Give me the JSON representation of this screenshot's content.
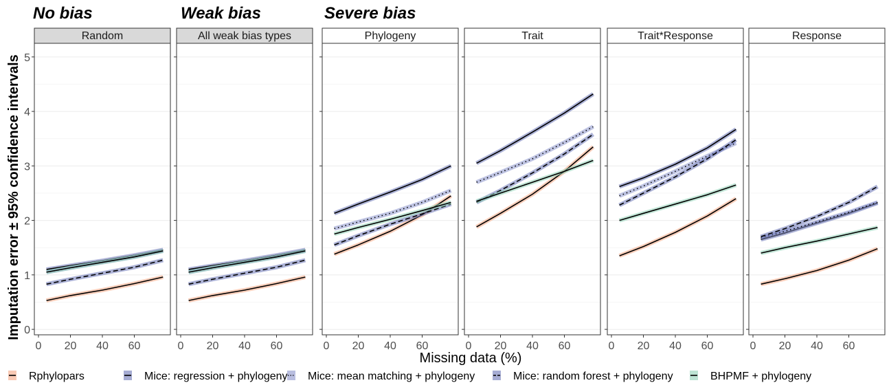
{
  "chart_data": {
    "type": "line",
    "group_titles": [
      "No bias",
      "Weak bias",
      "Severe bias"
    ],
    "xlabel": "Missing data (%)",
    "ylabel": "Imputation error ± 95% confidence intervals",
    "xlim": [
      0,
      80
    ],
    "ylim": [
      -0.1,
      5.25
    ],
    "x_ticks": [
      0,
      20,
      40,
      60
    ],
    "y_ticks": [
      0,
      1,
      2,
      3,
      4,
      5
    ],
    "grid": true,
    "legend_position": "bottom",
    "series_styles": [
      {
        "name": "Rphylopars",
        "color": "#f4a582",
        "dash": "solid"
      },
      {
        "name": "Mice: regression + phylogeny",
        "color": "#6a75b6",
        "dash": "solid"
      },
      {
        "name": "Mice: mean matching + phylogeny",
        "color": "#8b93cc",
        "dash": "dotted"
      },
      {
        "name": "Mice: random forest + phylogeny",
        "color": "#6a75b6",
        "dash": "dashed"
      },
      {
        "name": "BHPMF + phylogeny",
        "color": "#8fd1b6",
        "dash": "solid"
      }
    ],
    "panels": [
      {
        "label": "Random",
        "shaded": true,
        "series": [
          {
            "name": "Rphylopars",
            "x": [
              5,
              20,
              40,
              60,
              78
            ],
            "y": [
              0.53,
              0.62,
              0.72,
              0.84,
              0.96
            ]
          },
          {
            "name": "Mice: regression + phylogeny",
            "x": [
              5,
              20,
              40,
              60,
              78
            ],
            "y": [
              1.1,
              1.17,
              1.26,
              1.36,
              1.46
            ]
          },
          {
            "name": "Mice: mean matching + phylogeny",
            "x": [
              5,
              20,
              40,
              60,
              78
            ],
            "y": [
              1.05,
              1.13,
              1.23,
              1.33,
              1.44
            ]
          },
          {
            "name": "Mice: random forest + phylogeny",
            "x": [
              5,
              20,
              40,
              60,
              78
            ],
            "y": [
              0.83,
              0.92,
              1.03,
              1.14,
              1.27
            ]
          },
          {
            "name": "BHPMF + phylogeny",
            "x": [
              5,
              20,
              40,
              60,
              78
            ],
            "y": [
              1.05,
              1.13,
              1.23,
              1.33,
              1.44
            ]
          }
        ]
      },
      {
        "label": "All weak bias types",
        "shaded": true,
        "series": [
          {
            "name": "Rphylopars",
            "x": [
              5,
              20,
              40,
              60,
              78
            ],
            "y": [
              0.53,
              0.62,
              0.72,
              0.84,
              0.96
            ]
          },
          {
            "name": "Mice: regression + phylogeny",
            "x": [
              5,
              20,
              40,
              60,
              78
            ],
            "y": [
              1.1,
              1.17,
              1.26,
              1.36,
              1.46
            ]
          },
          {
            "name": "Mice: mean matching + phylogeny",
            "x": [
              5,
              20,
              40,
              60,
              78
            ],
            "y": [
              1.05,
              1.13,
              1.23,
              1.33,
              1.44
            ]
          },
          {
            "name": "Mice: random forest + phylogeny",
            "x": [
              5,
              20,
              40,
              60,
              78
            ],
            "y": [
              0.83,
              0.92,
              1.03,
              1.14,
              1.27
            ]
          },
          {
            "name": "BHPMF + phylogeny",
            "x": [
              5,
              20,
              40,
              60,
              78
            ],
            "y": [
              1.05,
              1.13,
              1.23,
              1.33,
              1.44
            ]
          }
        ]
      },
      {
        "label": "Phylogeny",
        "shaded": false,
        "series": [
          {
            "name": "Rphylopars",
            "x": [
              5,
              20,
              40,
              60,
              78
            ],
            "y": [
              1.38,
              1.55,
              1.8,
              2.1,
              2.45
            ]
          },
          {
            "name": "Mice: regression + phylogeny",
            "x": [
              5,
              20,
              40,
              60,
              78
            ],
            "y": [
              2.13,
              2.3,
              2.52,
              2.75,
              3.0
            ]
          },
          {
            "name": "Mice: mean matching + phylogeny",
            "x": [
              5,
              20,
              40,
              60,
              78
            ],
            "y": [
              1.85,
              1.97,
              2.13,
              2.33,
              2.55
            ]
          },
          {
            "name": "Mice: random forest + phylogeny",
            "x": [
              5,
              20,
              40,
              60,
              78
            ],
            "y": [
              1.55,
              1.72,
              1.93,
              2.12,
              2.3
            ]
          },
          {
            "name": "BHPMF + phylogeny",
            "x": [
              5,
              20,
              40,
              60,
              78
            ],
            "y": [
              1.75,
              1.87,
              2.02,
              2.18,
              2.33
            ]
          }
        ]
      },
      {
        "label": "Trait",
        "shaded": false,
        "series": [
          {
            "name": "Rphylopars",
            "x": [
              5,
              20,
              40,
              60,
              78
            ],
            "y": [
              1.88,
              2.13,
              2.48,
              2.9,
              3.35
            ]
          },
          {
            "name": "Mice: regression + phylogeny",
            "x": [
              5,
              20,
              40,
              60,
              78
            ],
            "y": [
              3.05,
              3.28,
              3.62,
              3.97,
              4.32
            ]
          },
          {
            "name": "Mice: mean matching + phylogeny",
            "x": [
              5,
              20,
              40,
              60,
              78
            ],
            "y": [
              2.7,
              2.88,
              3.13,
              3.43,
              3.72
            ]
          },
          {
            "name": "Mice: random forest + phylogeny",
            "x": [
              5,
              20,
              40,
              60,
              78
            ],
            "y": [
              2.33,
              2.55,
              2.87,
              3.22,
              3.58
            ]
          },
          {
            "name": "BHPMF + phylogeny",
            "x": [
              5,
              20,
              40,
              60,
              78
            ],
            "y": [
              2.35,
              2.5,
              2.7,
              2.9,
              3.1
            ]
          }
        ]
      },
      {
        "label": "Trait*Response",
        "shaded": false,
        "series": [
          {
            "name": "Rphylopars",
            "x": [
              5,
              20,
              40,
              60,
              78
            ],
            "y": [
              1.35,
              1.52,
              1.78,
              2.08,
              2.4
            ]
          },
          {
            "name": "Mice: regression + phylogeny",
            "x": [
              5,
              20,
              40,
              60,
              78
            ],
            "y": [
              2.62,
              2.78,
              3.03,
              3.33,
              3.67
            ]
          },
          {
            "name": "Mice: mean matching + phylogeny",
            "x": [
              5,
              20,
              40,
              60,
              78
            ],
            "y": [
              2.45,
              2.63,
              2.9,
              3.18,
              3.42
            ]
          },
          {
            "name": "Mice: random forest + phylogeny",
            "x": [
              5,
              20,
              40,
              60,
              78
            ],
            "y": [
              2.28,
              2.5,
              2.8,
              3.13,
              3.48
            ]
          },
          {
            "name": "BHPMF + phylogeny",
            "x": [
              5,
              20,
              40,
              60,
              78
            ],
            "y": [
              2.0,
              2.13,
              2.3,
              2.47,
              2.65
            ]
          }
        ]
      },
      {
        "label": "Response",
        "shaded": false,
        "series": [
          {
            "name": "Rphylopars",
            "x": [
              5,
              20,
              40,
              60,
              78
            ],
            "y": [
              0.83,
              0.93,
              1.08,
              1.27,
              1.48
            ]
          },
          {
            "name": "Mice: regression + phylogeny",
            "x": [
              5,
              20,
              40,
              60,
              78
            ],
            "y": [
              1.65,
              1.77,
              1.95,
              2.13,
              2.32
            ]
          },
          {
            "name": "Mice: mean matching + phylogeny",
            "x": [
              5,
              20,
              40,
              60,
              78
            ],
            "y": [
              1.68,
              1.8,
              1.97,
              2.15,
              2.33
            ]
          },
          {
            "name": "Mice: random forest + phylogeny",
            "x": [
              5,
              20,
              40,
              60,
              78
            ],
            "y": [
              1.7,
              1.85,
              2.07,
              2.33,
              2.62
            ]
          },
          {
            "name": "BHPMF + phylogeny",
            "x": [
              5,
              20,
              40,
              60,
              78
            ],
            "y": [
              1.4,
              1.5,
              1.62,
              1.75,
              1.87
            ]
          }
        ]
      }
    ]
  }
}
